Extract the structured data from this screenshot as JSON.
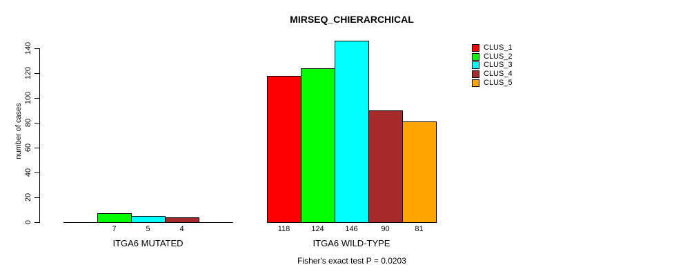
{
  "chart_data": {
    "type": "bar",
    "title": "MIRSEQ_CHIERARCHICAL",
    "ylabel": "number of cases",
    "xlabel": "",
    "yticks": [
      0,
      20,
      40,
      60,
      80,
      100,
      120,
      140
    ],
    "ylim": [
      0,
      146
    ],
    "grid": false,
    "legend_position": "top-right",
    "caption": "Fisher's exact test P = 0.0203",
    "groups": [
      {
        "label": "ITGA6 MUTATED",
        "bars": [
          {
            "cluster": "CLUS_1",
            "value": 0
          },
          {
            "cluster": "CLUS_2",
            "value": 7
          },
          {
            "cluster": "CLUS_3",
            "value": 5
          },
          {
            "cluster": "CLUS_4",
            "value": 4
          },
          {
            "cluster": "CLUS_5",
            "value": 0
          }
        ]
      },
      {
        "label": "ITGA6 WILD-TYPE",
        "bars": [
          {
            "cluster": "CLUS_1",
            "value": 118
          },
          {
            "cluster": "CLUS_2",
            "value": 124
          },
          {
            "cluster": "CLUS_3",
            "value": 146
          },
          {
            "cluster": "CLUS_4",
            "value": 90
          },
          {
            "cluster": "CLUS_5",
            "value": 81
          }
        ]
      }
    ],
    "legend": [
      {
        "label": "CLUS_1",
        "color": "#FF0000"
      },
      {
        "label": "CLUS_2",
        "color": "#00FF00"
      },
      {
        "label": "CLUS_3",
        "color": "#00FFFF"
      },
      {
        "label": "CLUS_4",
        "color": "#A52A2A"
      },
      {
        "label": "CLUS_5",
        "color": "#FFA500"
      }
    ]
  }
}
